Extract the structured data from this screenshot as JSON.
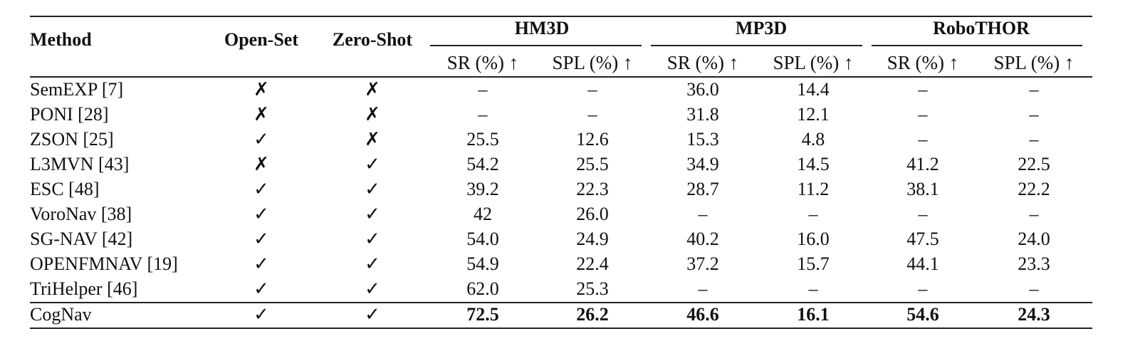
{
  "header": {
    "method": "Method",
    "open_set": "Open-Set",
    "zero_shot": "Zero-Shot",
    "groups": [
      "HM3D",
      "MP3D",
      "RoboTHOR"
    ],
    "subcols": [
      "SR (%) ↑",
      "SPL (%) ↑",
      "SR (%) ↑",
      "SPL (%) ↑",
      "SR (%) ↑",
      "SPL (%) ↑"
    ]
  },
  "rows": [
    {
      "method": "SemEXP [7]",
      "open_set": "✗",
      "zero_shot": "✗",
      "values": [
        "–",
        "–",
        "36.0",
        "14.4",
        "–",
        "–"
      ]
    },
    {
      "method": "PONI [28]",
      "open_set": "✗",
      "zero_shot": "✗",
      "values": [
        "–",
        "–",
        "31.8",
        "12.1",
        "–",
        "–"
      ]
    },
    {
      "method": "ZSON [25]",
      "open_set": "✓",
      "zero_shot": "✗",
      "values": [
        "25.5",
        "12.6",
        "15.3",
        "4.8",
        "–",
        "–"
      ]
    },
    {
      "method": "L3MVN [43]",
      "open_set": "✗",
      "zero_shot": "✓",
      "values": [
        "54.2",
        "25.5",
        "34.9",
        "14.5",
        "41.2",
        "22.5"
      ]
    },
    {
      "method": "ESC [48]",
      "open_set": "✓",
      "zero_shot": "✓",
      "values": [
        "39.2",
        "22.3",
        "28.7",
        "11.2",
        "38.1",
        "22.2"
      ]
    },
    {
      "method": "VoroNav [38]",
      "open_set": "✓",
      "zero_shot": "✓",
      "values": [
        "42",
        "26.0",
        "–",
        "–",
        "–",
        "–"
      ]
    },
    {
      "method": "SG-NAV [42]",
      "open_set": "✓",
      "zero_shot": "✓",
      "values": [
        "54.0",
        "24.9",
        "40.2",
        "16.0",
        "47.5",
        "24.0"
      ]
    },
    {
      "method": "OPENFMNAV [19]",
      "open_set": "✓",
      "zero_shot": "✓",
      "values": [
        "54.9",
        "22.4",
        "37.2",
        "15.7",
        "44.1",
        "23.3"
      ]
    },
    {
      "method": "TriHelper [46]",
      "open_set": "✓",
      "zero_shot": "✓",
      "values": [
        "62.0",
        "25.3",
        "–",
        "–",
        "–",
        "–"
      ]
    },
    {
      "method": "CogNav",
      "open_set": "✓",
      "zero_shot": "✓",
      "values": [
        "72.5",
        "26.2",
        "46.6",
        "16.1",
        "54.6",
        "24.3"
      ],
      "bold": true
    }
  ]
}
